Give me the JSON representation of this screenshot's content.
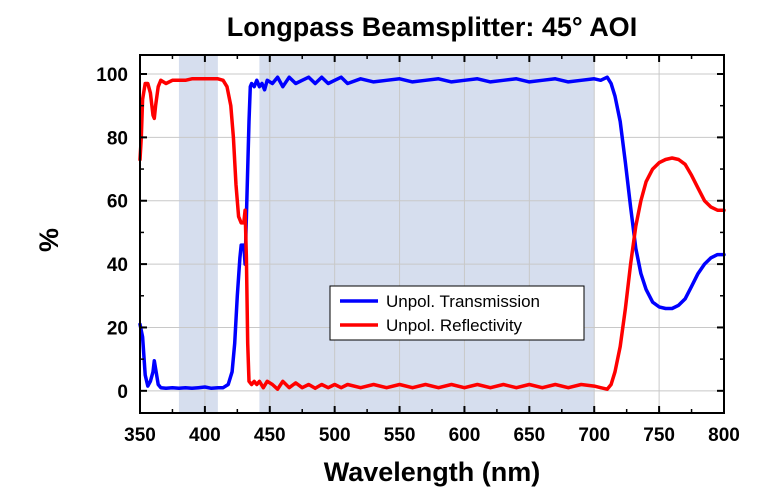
{
  "chart_data": {
    "type": "line",
    "title": "Longpass Beamsplitter: 45° AOI",
    "xlabel": "Wavelength (nm)",
    "ylabel": "%",
    "xlim": [
      350,
      800
    ],
    "ylim": [
      -7,
      106
    ],
    "x_ticks": [
      350,
      400,
      450,
      500,
      550,
      600,
      650,
      700,
      750,
      800
    ],
    "y_ticks": [
      0,
      20,
      40,
      60,
      80,
      100
    ],
    "grid": true,
    "legend_position": "lower-center",
    "shaded_bands": [
      {
        "from": 380,
        "to": 410,
        "color": "#d6deee"
      },
      {
        "from": 442,
        "to": 700,
        "color": "#d6deee"
      }
    ],
    "series": [
      {
        "name": "Unpol. Transmission",
        "color": "#0000ff",
        "points": [
          [
            350,
            21
          ],
          [
            352,
            17
          ],
          [
            354,
            5
          ],
          [
            356,
            1.5
          ],
          [
            358,
            3
          ],
          [
            360,
            6
          ],
          [
            361,
            9.5
          ],
          [
            362,
            7
          ],
          [
            364,
            2
          ],
          [
            366,
            1
          ],
          [
            370,
            0.8
          ],
          [
            375,
            1
          ],
          [
            380,
            0.8
          ],
          [
            385,
            1
          ],
          [
            390,
            0.8
          ],
          [
            395,
            1
          ],
          [
            400,
            1.2
          ],
          [
            405,
            0.8
          ],
          [
            410,
            1
          ],
          [
            414,
            1
          ],
          [
            418,
            2
          ],
          [
            421,
            6
          ],
          [
            423,
            15
          ],
          [
            425,
            30
          ],
          [
            427,
            42
          ],
          [
            428,
            46
          ],
          [
            430,
            46
          ],
          [
            431,
            40
          ],
          [
            432,
            55
          ],
          [
            434,
            85
          ],
          [
            435,
            96
          ],
          [
            436,
            97
          ],
          [
            438,
            96
          ],
          [
            440,
            98
          ],
          [
            442,
            96
          ],
          [
            444,
            97
          ],
          [
            446,
            95
          ],
          [
            448,
            98
          ],
          [
            452,
            97
          ],
          [
            456,
            99
          ],
          [
            460,
            96
          ],
          [
            465,
            99
          ],
          [
            470,
            97
          ],
          [
            475,
            98
          ],
          [
            480,
            99
          ],
          [
            485,
            97
          ],
          [
            490,
            99
          ],
          [
            495,
            97
          ],
          [
            500,
            98
          ],
          [
            505,
            99
          ],
          [
            510,
            97
          ],
          [
            520,
            98.5
          ],
          [
            530,
            97.5
          ],
          [
            540,
            98
          ],
          [
            550,
            98.5
          ],
          [
            560,
            97.5
          ],
          [
            570,
            98
          ],
          [
            580,
            98.5
          ],
          [
            590,
            97.5
          ],
          [
            600,
            98
          ],
          [
            610,
            98.5
          ],
          [
            620,
            97.5
          ],
          [
            630,
            98
          ],
          [
            640,
            98.5
          ],
          [
            650,
            97.5
          ],
          [
            660,
            98
          ],
          [
            670,
            98.5
          ],
          [
            680,
            97.5
          ],
          [
            690,
            98
          ],
          [
            700,
            98.5
          ],
          [
            705,
            98
          ],
          [
            710,
            99
          ],
          [
            713,
            97
          ],
          [
            716,
            93
          ],
          [
            720,
            85
          ],
          [
            724,
            72
          ],
          [
            728,
            58
          ],
          [
            732,
            45
          ],
          [
            736,
            37
          ],
          [
            740,
            32
          ],
          [
            745,
            28
          ],
          [
            750,
            26.5
          ],
          [
            755,
            26
          ],
          [
            760,
            26
          ],
          [
            765,
            27
          ],
          [
            770,
            29
          ],
          [
            775,
            33
          ],
          [
            780,
            37
          ],
          [
            785,
            40
          ],
          [
            790,
            42
          ],
          [
            795,
            43
          ],
          [
            800,
            43
          ]
        ]
      },
      {
        "name": "Unpol. Reflectivity",
        "color": "#ff0000",
        "points": [
          [
            350,
            73
          ],
          [
            351,
            80
          ],
          [
            352,
            92
          ],
          [
            354,
            97
          ],
          [
            356,
            97
          ],
          [
            358,
            94
          ],
          [
            360,
            87
          ],
          [
            361,
            86
          ],
          [
            362,
            90
          ],
          [
            364,
            96
          ],
          [
            366,
            98
          ],
          [
            370,
            97
          ],
          [
            375,
            98
          ],
          [
            380,
            98
          ],
          [
            385,
            98
          ],
          [
            390,
            98.5
          ],
          [
            395,
            98.5
          ],
          [
            400,
            98.5
          ],
          [
            405,
            98.5
          ],
          [
            410,
            98.5
          ],
          [
            414,
            98
          ],
          [
            417,
            96
          ],
          [
            420,
            90
          ],
          [
            422,
            80
          ],
          [
            424,
            65
          ],
          [
            426,
            55
          ],
          [
            428,
            53
          ],
          [
            430,
            53
          ],
          [
            431,
            57
          ],
          [
            432,
            42
          ],
          [
            433,
            15
          ],
          [
            434,
            3
          ],
          [
            436,
            2
          ],
          [
            438,
            3
          ],
          [
            440,
            2
          ],
          [
            442,
            3
          ],
          [
            445,
            1
          ],
          [
            448,
            3
          ],
          [
            452,
            2
          ],
          [
            456,
            0.5
          ],
          [
            460,
            3
          ],
          [
            465,
            1
          ],
          [
            470,
            2.5
          ],
          [
            475,
            1
          ],
          [
            480,
            2
          ],
          [
            485,
            0.8
          ],
          [
            490,
            2
          ],
          [
            495,
            1
          ],
          [
            500,
            2
          ],
          [
            505,
            1
          ],
          [
            510,
            2
          ],
          [
            520,
            1
          ],
          [
            530,
            2
          ],
          [
            540,
            1
          ],
          [
            550,
            2
          ],
          [
            560,
            1
          ],
          [
            570,
            2
          ],
          [
            580,
            1
          ],
          [
            590,
            2
          ],
          [
            600,
            1
          ],
          [
            610,
            2
          ],
          [
            620,
            1
          ],
          [
            630,
            2
          ],
          [
            640,
            1
          ],
          [
            650,
            2
          ],
          [
            660,
            1
          ],
          [
            670,
            2
          ],
          [
            680,
            1
          ],
          [
            690,
            2
          ],
          [
            700,
            1.5
          ],
          [
            705,
            1
          ],
          [
            710,
            0.5
          ],
          [
            713,
            2
          ],
          [
            716,
            6
          ],
          [
            720,
            14
          ],
          [
            724,
            26
          ],
          [
            728,
            40
          ],
          [
            732,
            52
          ],
          [
            736,
            60
          ],
          [
            740,
            66
          ],
          [
            745,
            70
          ],
          [
            750,
            72
          ],
          [
            755,
            73
          ],
          [
            760,
            73.5
          ],
          [
            765,
            73
          ],
          [
            770,
            71.5
          ],
          [
            775,
            68
          ],
          [
            780,
            64
          ],
          [
            785,
            60
          ],
          [
            790,
            58
          ],
          [
            795,
            57
          ],
          [
            800,
            57
          ]
        ]
      }
    ]
  }
}
